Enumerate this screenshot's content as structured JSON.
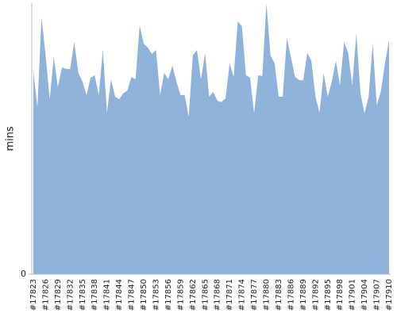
{
  "chart_data": {
    "type": "area",
    "y_label": "mins",
    "color": "#8fb2db",
    "categories": [
      "#17823",
      null,
      null,
      "#17826",
      null,
      null,
      "#17829",
      null,
      null,
      "#17832",
      null,
      null,
      "#17835",
      null,
      null,
      "#17838",
      null,
      null,
      "#17841",
      null,
      null,
      "#17844",
      null,
      null,
      "#17847",
      null,
      null,
      "#17850",
      null,
      null,
      "#17853",
      null,
      null,
      "#17856",
      null,
      null,
      "#17859",
      null,
      null,
      "#17862",
      null,
      null,
      "#17865",
      null,
      null,
      "#17868",
      null,
      null,
      "#17871",
      null,
      null,
      "#17874",
      null,
      null,
      "#17877",
      null,
      null,
      "#17880",
      null,
      null,
      "#17883",
      null,
      null,
      "#17886",
      null,
      null,
      "#17889",
      null,
      null,
      "#17892",
      null,
      null,
      "#17895",
      null,
      null,
      "#17898",
      null,
      null,
      "#17901",
      null,
      null,
      "#17904",
      null,
      null,
      "#17907",
      null,
      null,
      "#17910"
    ],
    "values": [
      74.9,
      61.7,
      94.7,
      80.7,
      64.6,
      80.1,
      69.0,
      76.3,
      75.7,
      75.7,
      85.7,
      74.3,
      71.1,
      66.1,
      72.5,
      73.4,
      66.1,
      82.7,
      59.6,
      71.9,
      65.5,
      64.6,
      66.7,
      67.8,
      72.8,
      71.9,
      91.8,
      85.1,
      83.6,
      81.3,
      82.7,
      66.1,
      74.3,
      71.9,
      76.9,
      71.1,
      66.1,
      66.1,
      58.2,
      80.7,
      82.7,
      71.9,
      81.6,
      65.5,
      67.3,
      64.0,
      63.5,
      64.9,
      77.8,
      72.8,
      93.3,
      91.5,
      73.4,
      72.5,
      59.4,
      73.4,
      73.1,
      100,
      80.7,
      77.8,
      65.5,
      65.5,
      87.1,
      80.1,
      72.8,
      71.6,
      71.6,
      81.6,
      78.7,
      65.5,
      59.6,
      74.3,
      65.5,
      71.1,
      78.7,
      69.6,
      85.7,
      81.6,
      69.6,
      88.9,
      66.7,
      59.4,
      65.5,
      85.1,
      62.3,
      67.5,
      77.8,
      86.5
    ],
    "ylim": [
      0,
      100
    ],
    "yticks": [
      0
    ]
  }
}
